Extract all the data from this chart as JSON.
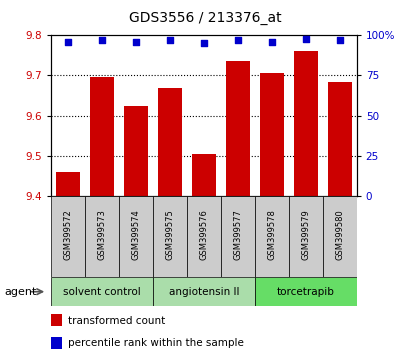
{
  "title": "GDS3556 / 213376_at",
  "categories": [
    "GSM399572",
    "GSM399573",
    "GSM399574",
    "GSM399575",
    "GSM399576",
    "GSM399577",
    "GSM399578",
    "GSM399579",
    "GSM399580"
  ],
  "bar_values": [
    9.46,
    9.695,
    9.625,
    9.668,
    9.505,
    9.735,
    9.705,
    9.76,
    9.685
  ],
  "percentile_values": [
    96,
    97,
    96,
    97,
    95,
    97,
    96,
    98,
    97
  ],
  "bar_color": "#cc0000",
  "dot_color": "#0000cc",
  "ylim_left": [
    9.4,
    9.8
  ],
  "ylim_right": [
    0,
    100
  ],
  "yticks_left": [
    9.4,
    9.5,
    9.6,
    9.7,
    9.8
  ],
  "yticks_right": [
    0,
    25,
    50,
    75,
    100
  ],
  "group_ranges": [
    [
      0,
      2,
      "solvent control",
      "#aaddaa"
    ],
    [
      3,
      5,
      "angiotensin II",
      "#aaddaa"
    ],
    [
      6,
      8,
      "torcetrapib",
      "#66dd66"
    ]
  ],
  "agent_label": "agent",
  "legend_red": "transformed count",
  "legend_blue": "percentile rank within the sample",
  "bar_width": 0.7,
  "tick_label_color_left": "#cc0000",
  "tick_label_color_right": "#0000cc",
  "sample_box_color": "#cccccc",
  "grid_color": "#000000"
}
